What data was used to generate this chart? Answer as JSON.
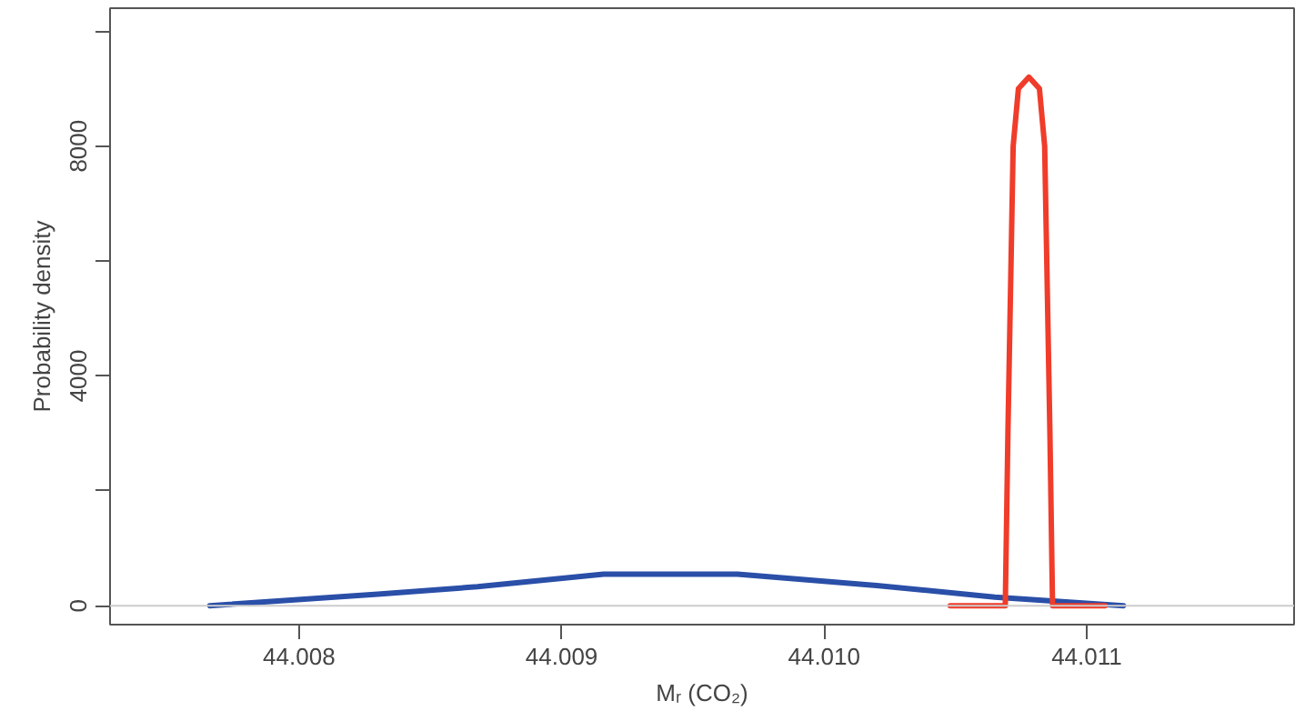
{
  "chart_data": {
    "type": "line",
    "xlabel": "Mᵣ (CO₂)",
    "ylabel": "Probability density",
    "xlim": [
      44.00728,
      44.01179
    ],
    "ylim": [
      -330,
      10400
    ],
    "xticks": [
      {
        "value": 44.008,
        "label": "44.008"
      },
      {
        "value": 44.009,
        "label": "44.009"
      },
      {
        "value": 44.01,
        "label": "44.010"
      },
      {
        "value": 44.011,
        "label": "44.011"
      }
    ],
    "yticks": [
      0,
      {
        "value": 2000,
        "label": null
      },
      4000,
      {
        "value": 6000,
        "label": null
      },
      8000,
      {
        "value": 10000,
        "label": null
      }
    ],
    "series": [
      {
        "color": "#2a4fa8",
        "x": [
          44.00766,
          44.0083,
          44.00868,
          44.00916,
          44.00967,
          44.0102,
          44.01065,
          44.01114
        ],
        "values": [
          0,
          200,
          330,
          550,
          550,
          350,
          150,
          0
        ]
      },
      {
        "color": "#f03c2a",
        "x": [
          44.01048,
          44.01069,
          44.0107,
          44.01072,
          44.01074,
          44.01078,
          44.01082,
          44.01084,
          44.01086,
          44.01087,
          44.01107
        ],
        "values": [
          0,
          0,
          3000,
          8000,
          9000,
          9200,
          9000,
          8000,
          3000,
          0,
          0
        ]
      }
    ],
    "ref_lines": [
      {
        "axis": "y",
        "value": 0,
        "color": "#cccccc"
      }
    ],
    "grid": false
  }
}
